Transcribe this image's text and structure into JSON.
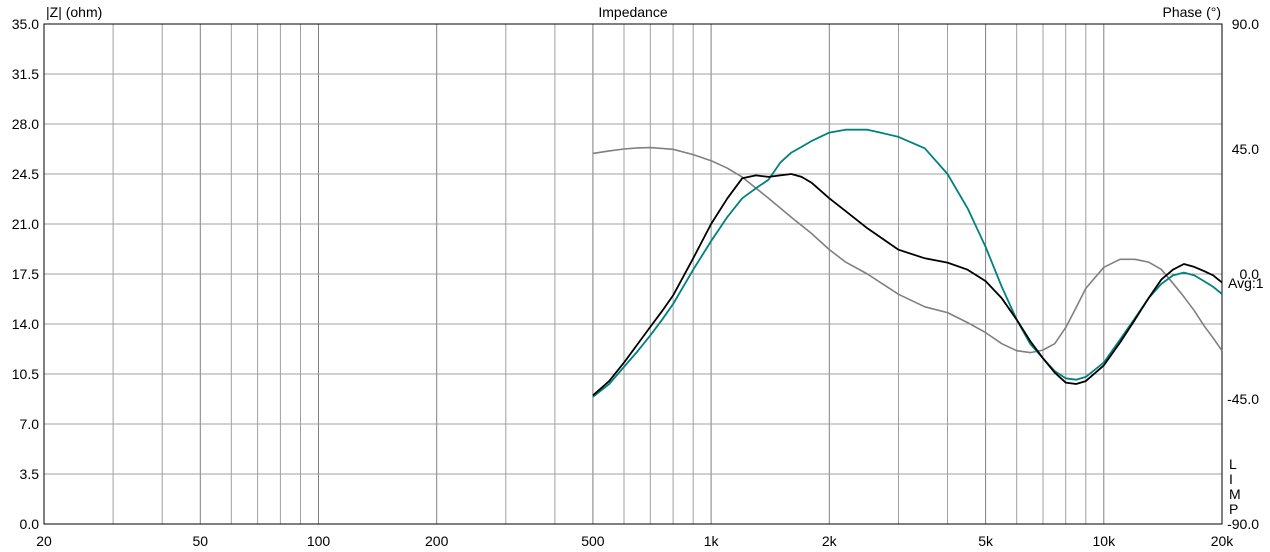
{
  "chart_data": {
    "type": "line",
    "title": "Impedance",
    "ylabel_left": "|Z| (ohm)",
    "ylabel_right": "Phase (°)",
    "xscale": "log",
    "xlim": [
      20,
      20000
    ],
    "ylim_left": [
      0,
      35
    ],
    "ylim_right": [
      -90,
      90
    ],
    "x_ticks": [
      {
        "value": 20,
        "label": "20"
      },
      {
        "value": 50,
        "label": "50"
      },
      {
        "value": 100,
        "label": "100"
      },
      {
        "value": 200,
        "label": "200"
      },
      {
        "value": 500,
        "label": "500"
      },
      {
        "value": 1000,
        "label": "1k"
      },
      {
        "value": 2000,
        "label": "2k"
      },
      {
        "value": 5000,
        "label": "5k"
      },
      {
        "value": 10000,
        "label": "10k"
      },
      {
        "value": 20000,
        "label": "20k"
      }
    ],
    "x_minor_grid": [
      30,
      40,
      60,
      70,
      80,
      90,
      300,
      400,
      600,
      700,
      800,
      900,
      3000,
      4000,
      6000,
      7000,
      8000,
      9000
    ],
    "y_ticks_left": [
      "0.0",
      "3.5",
      "7.0",
      "10.5",
      "14.0",
      "17.5",
      "21.0",
      "24.5",
      "28.0",
      "31.5",
      "35.0"
    ],
    "y_ticks_right": [
      {
        "value": 90,
        "label": "90.0"
      },
      {
        "value": 45,
        "label": "45.0"
      },
      {
        "value": 0,
        "label": "0.0"
      },
      {
        "value": -45,
        "label": "-45.0"
      },
      {
        "value": -90,
        "label": "-90.0"
      }
    ],
    "right_annotation": "Avg:1",
    "vertical_label": [
      "L",
      "I",
      "M",
      "P"
    ],
    "grid": true,
    "series": [
      {
        "axis": "right",
        "color": "#808080",
        "x": [
          500,
          550,
          600,
          650,
          700,
          800,
          900,
          1000,
          1100,
          1200,
          1400,
          1600,
          1800,
          2000,
          2200,
          2500,
          3000,
          3500,
          4000,
          4500,
          5000,
          5500,
          6000,
          6500,
          7000,
          7500,
          8000,
          8500,
          9000,
          10000,
          11000,
          12000,
          13000,
          14000,
          15000,
          16000,
          17000,
          18000,
          19000,
          20000
        ],
        "values": [
          43.4,
          44.3,
          45.0,
          45.4,
          45.5,
          44.9,
          43.0,
          40.8,
          38.1,
          34.9,
          27.3,
          20.4,
          14.6,
          8.8,
          4.3,
          0.0,
          -7.3,
          -11.8,
          -13.9,
          -17.5,
          -21.1,
          -25.1,
          -27.6,
          -28.3,
          -27.4,
          -25.1,
          -19.3,
          -12.1,
          -5.2,
          2.4,
          5.3,
          5.3,
          4.3,
          1.7,
          -3.3,
          -8.2,
          -13.2,
          -18.6,
          -23.1,
          -27.6
        ]
      },
      {
        "axis": "left",
        "color": "#008080",
        "x": [
          500,
          550,
          600,
          650,
          700,
          750,
          800,
          900,
          1000,
          1100,
          1200,
          1300,
          1400,
          1500,
          1600,
          1700,
          1800,
          2000,
          2200,
          2500,
          2700,
          3000,
          3500,
          4000,
          4500,
          5000,
          5500,
          6000,
          6500,
          7000,
          7500,
          8000,
          8500,
          9000,
          10000,
          11000,
          12000,
          13000,
          14000,
          15000,
          16000,
          17000,
          18000,
          19000,
          20000
        ],
        "values": [
          8.9,
          9.8,
          11.0,
          12.1,
          13.2,
          14.3,
          15.4,
          17.8,
          19.8,
          21.5,
          22.8,
          23.5,
          24.1,
          25.3,
          26.0,
          26.4,
          26.8,
          27.4,
          27.6,
          27.6,
          27.4,
          27.1,
          26.3,
          24.5,
          22.1,
          19.4,
          16.6,
          14.3,
          12.6,
          11.6,
          10.7,
          10.2,
          10.1,
          10.3,
          11.3,
          12.9,
          14.4,
          15.8,
          16.8,
          17.4,
          17.6,
          17.4,
          17.0,
          16.6,
          16.1
        ]
      },
      {
        "axis": "left",
        "color": "#000000",
        "x": [
          500,
          550,
          600,
          650,
          700,
          750,
          800,
          900,
          1000,
          1100,
          1200,
          1300,
          1400,
          1500,
          1600,
          1700,
          1800,
          2000,
          2200,
          2500,
          3000,
          3500,
          4000,
          4500,
          5000,
          5500,
          6000,
          6500,
          7000,
          7500,
          8000,
          8500,
          9000,
          10000,
          11000,
          12000,
          13000,
          14000,
          15000,
          16000,
          17000,
          18000,
          19000,
          20000
        ],
        "values": [
          9.0,
          10.0,
          11.3,
          12.6,
          13.8,
          14.9,
          16.0,
          18.6,
          21.0,
          22.8,
          24.2,
          24.4,
          24.3,
          24.4,
          24.5,
          24.3,
          23.9,
          22.8,
          21.9,
          20.7,
          19.2,
          18.6,
          18.3,
          17.8,
          17.0,
          15.8,
          14.3,
          12.8,
          11.6,
          10.6,
          9.9,
          9.8,
          10.0,
          11.1,
          12.7,
          14.3,
          15.8,
          17.1,
          17.8,
          18.2,
          18.0,
          17.7,
          17.4,
          16.9
        ]
      }
    ]
  }
}
